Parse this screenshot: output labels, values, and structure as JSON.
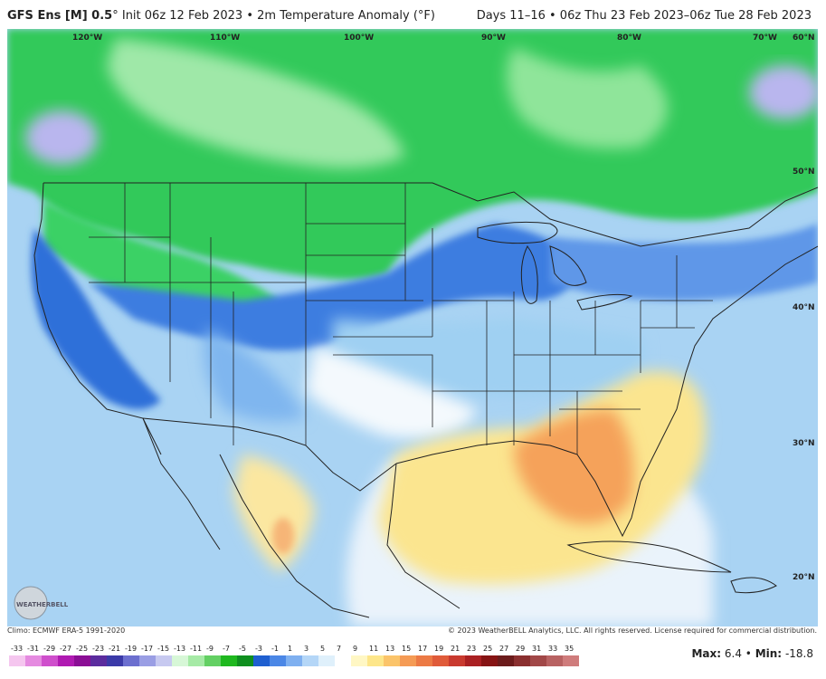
{
  "header": {
    "model": "GFS Ens [M] 0.5",
    "degree": "°",
    "init": "Init 06z 12 Feb 2023",
    "sep": "•",
    "variable": "2m Temperature Anomaly (°F)",
    "range": "Days 11–16  •  06z Thu 23 Feb 2023–06z Tue 28 Feb 2023"
  },
  "longitude_labels": [
    "120°W",
    "110°W",
    "100°W",
    "90°W",
    "80°W",
    "70°W"
  ],
  "latitude_labels": [
    "60°N",
    "50°N",
    "40°N",
    "30°N",
    "20°N"
  ],
  "footer": {
    "climo": "Climo: ECMWF ERA-5 1991-2020",
    "copyright": "© 2023 WeatherBELL Analytics, LLC. All rights reserved. License required for commercial distribution."
  },
  "logo_text": "WEATHERBELL",
  "colorbar": {
    "ticks": [
      "-33",
      "-31",
      "-29",
      "-27",
      "-25",
      "-23",
      "-21",
      "-19",
      "-17",
      "-15",
      "-13",
      "-11",
      "-9",
      "-7",
      "-5",
      "-3",
      "-1",
      "1",
      "3",
      "5",
      "7",
      "9",
      "11",
      "13",
      "15",
      "17",
      "19",
      "21",
      "23",
      "25",
      "27",
      "29",
      "31",
      "33",
      "35"
    ],
    "colors": [
      "#f5c6ef",
      "#e58ae0",
      "#cf4fcc",
      "#b01ab2",
      "#8b0e95",
      "#5b2c9e",
      "#3b3aa8",
      "#6c6fcf",
      "#9a9ee4",
      "#c7c9f0",
      "#d7f7d7",
      "#a6eaa6",
      "#63d063",
      "#1fb81f",
      "#0f8f1f",
      "#1f5fd0",
      "#4b87e6",
      "#7fb0f0",
      "#b4d6f7",
      "#dff0fb",
      "#ffffff",
      "#fff7c4",
      "#fde68a",
      "#fbc46a",
      "#f59b55",
      "#ec7a45",
      "#e05b3a",
      "#c93a2f",
      "#aa2022",
      "#861414",
      "#6b1b1b",
      "#8a2f2f",
      "#a14848",
      "#b86262",
      "#cf7c7c"
    ]
  },
  "stats": {
    "max_label": "Max:",
    "max": "6.4",
    "min_label": "Min:",
    "min": "-18.8"
  },
  "colors": {
    "green": "#32c95a",
    "light_green": "#8fe59a",
    "blue": "#2f6fd9",
    "light_blue": "#9fd0f2",
    "yellow": "#fbe58f",
    "orange": "#f5a25a"
  }
}
